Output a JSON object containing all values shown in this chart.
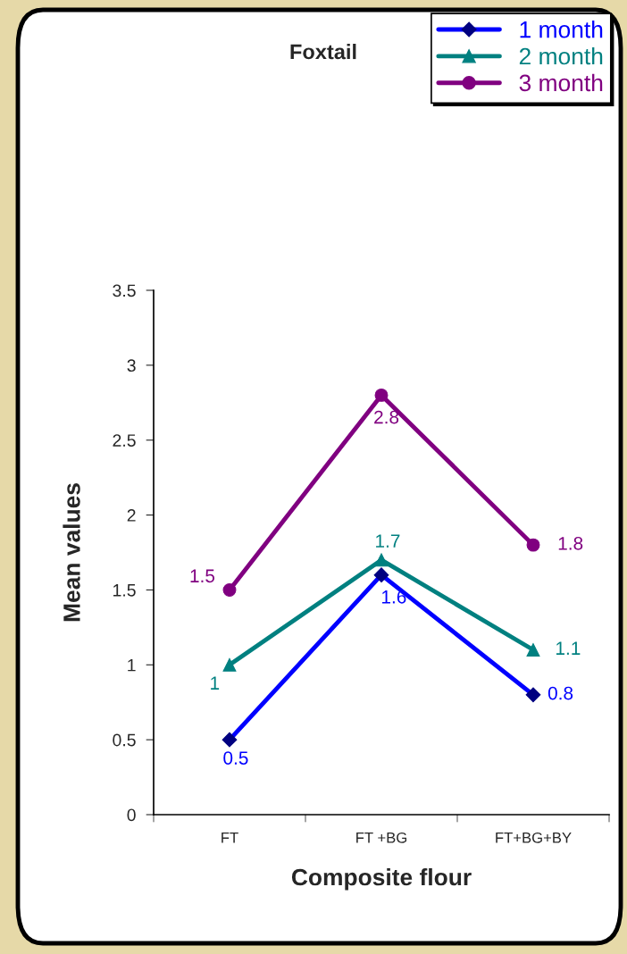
{
  "chart_data": {
    "type": "line",
    "title": "Foxtail",
    "xlabel": "Composite flour",
    "ylabel": "Mean values",
    "categories": [
      "FT",
      "FT +BG",
      "FT+BG+BY"
    ],
    "series": [
      {
        "name": "1 month",
        "color": "#0000ff",
        "marker": "diamond",
        "values": [
          0.5,
          1.6,
          0.8
        ]
      },
      {
        "name": "2 month",
        "color": "#008080",
        "marker": "triangle",
        "values": [
          1,
          1.7,
          1.1
        ]
      },
      {
        "name": "3 month",
        "color": "#800080",
        "marker": "circle",
        "values": [
          1.5,
          2.8,
          1.8
        ]
      }
    ],
    "ylim": [
      0,
      3.5
    ],
    "yticks": [
      0,
      0.5,
      1,
      1.5,
      2,
      2.5,
      3,
      3.5
    ],
    "data_labels": true,
    "legend": "top right",
    "grid": false
  }
}
